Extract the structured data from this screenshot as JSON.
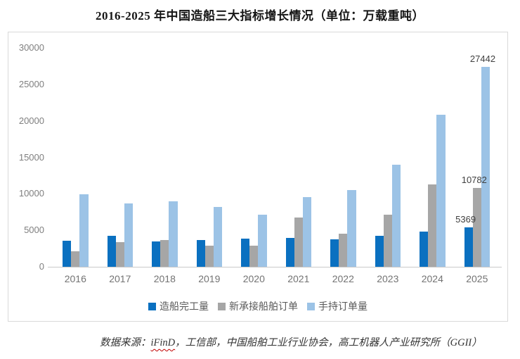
{
  "title": "2016-2025 年中国造船三大指标增长情况（单位：万载重吨）",
  "footer": {
    "prefix": "数据来源：",
    "linked_source": "iFinD",
    "suffix": "，工信部，中国船舶工业行业协会，高工机器人产业研究所（GGII）"
  },
  "colors": {
    "series_blue": "#0a70c0",
    "series_gray": "#a6a6a6",
    "series_lightblue": "#9cc3e6",
    "chart_border": "#d9d9d9",
    "axis_line": "#c9c9c9",
    "tick_text": "#7f7f7f",
    "data_label_text": "#404040",
    "squiggle_red": "#c00000"
  },
  "chart_data": {
    "type": "bar",
    "title": "2016-2025 年中国造船三大指标增长情况（单位：万载重吨）",
    "categories": [
      "2016",
      "2017",
      "2018",
      "2019",
      "2020",
      "2021",
      "2022",
      "2023",
      "2024",
      "2025"
    ],
    "series": [
      {
        "name": "造船完工量",
        "color": "#0a70c0",
        "values": [
          3532,
          4268,
          3458,
          3672,
          3853,
          3970,
          3786,
          4232,
          4818,
          5369
        ]
      },
      {
        "name": "新承接船舶订单",
        "color": "#a6a6a6",
        "values": [
          2107,
          3373,
          3667,
          2907,
          2893,
          6707,
          4552,
          7120,
          11305,
          10782
        ]
      },
      {
        "name": "手持订单量",
        "color": "#9cc3e6",
        "values": [
          9961,
          8723,
          8931,
          8166,
          7111,
          9584,
          10557,
          13939,
          20872,
          27442
        ]
      }
    ],
    "data_labels_year": "2025",
    "data_labels": [
      "5369",
      "10782",
      "27442"
    ],
    "yticks": [
      0,
      5000,
      10000,
      15000,
      20000,
      25000,
      30000
    ],
    "ylim": [
      0,
      30000
    ],
    "grid": false,
    "legend_position": "bottom"
  }
}
